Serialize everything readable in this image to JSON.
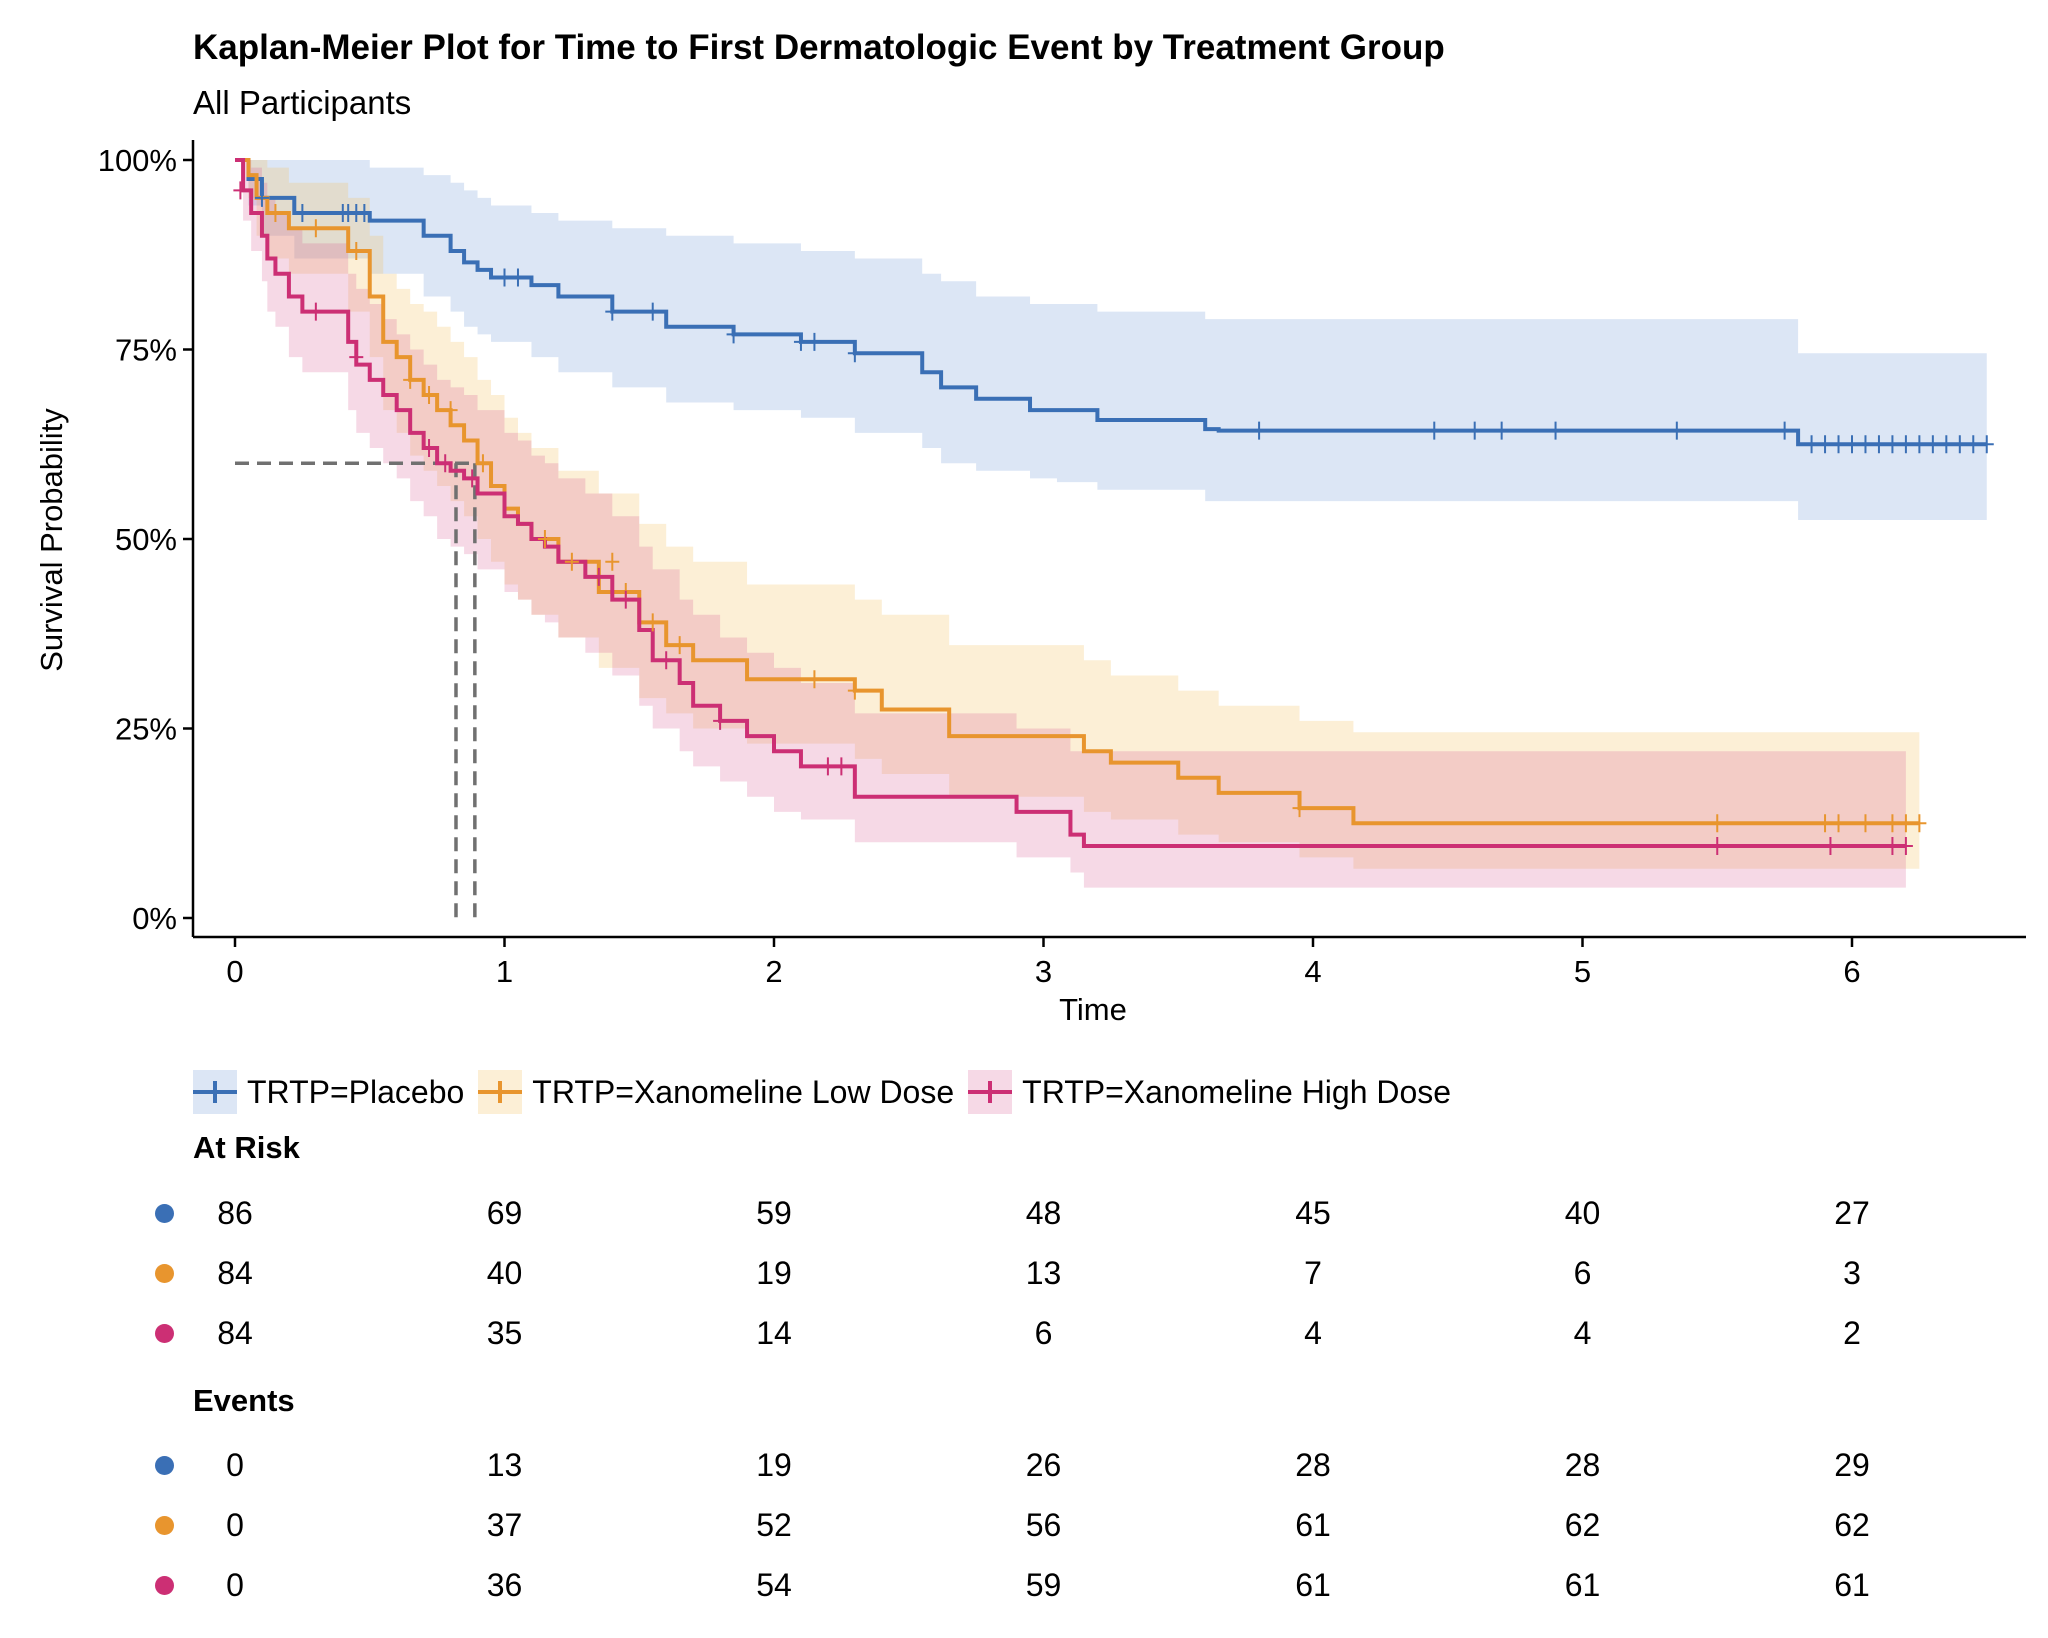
{
  "colors": {
    "placebo": "#3a6fb5",
    "low": "#e8952e",
    "high": "#cc2f74"
  },
  "chart_data": {
    "type": "line",
    "title": "Kaplan-Meier Plot for Time to First Dermatologic Event by Treatment Group",
    "subtitle": "All Participants",
    "xlabel": "Time",
    "ylabel": "Survival Probability",
    "xlim": [
      0,
      6.5
    ],
    "ylim": [
      0,
      1
    ],
    "x_ticks": [
      "0",
      "1",
      "2",
      "3",
      "4",
      "5",
      "6"
    ],
    "y_ticks": [
      "0%",
      "25%",
      "50%",
      "75%",
      "100%"
    ],
    "grid": false,
    "legend_position": "bottom",
    "median_lines": [
      0.82,
      0.89
    ],
    "median_level": 0.6,
    "series": [
      {
        "name": "TRTP=Placebo",
        "color_key": "placebo",
        "x": [
          0,
          0.05,
          0.1,
          0.22,
          0.5,
          0.7,
          0.8,
          0.85,
          0.9,
          0.95,
          1.1,
          1.2,
          1.4,
          1.6,
          1.85,
          2.1,
          2.3,
          2.55,
          2.62,
          2.75,
          2.95,
          3.05,
          3.2,
          3.6,
          3.65,
          5.8,
          6.5
        ],
        "y": [
          1.0,
          0.975,
          0.95,
          0.93,
          0.92,
          0.9,
          0.88,
          0.865,
          0.855,
          0.845,
          0.835,
          0.82,
          0.8,
          0.78,
          0.77,
          0.76,
          0.745,
          0.72,
          0.7,
          0.685,
          0.67,
          0.67,
          0.657,
          0.645,
          0.643,
          0.625,
          0.625
        ],
        "ci_lower": [
          1.0,
          0.94,
          0.9,
          0.87,
          0.85,
          0.82,
          0.8,
          0.78,
          0.77,
          0.76,
          0.74,
          0.72,
          0.7,
          0.68,
          0.67,
          0.66,
          0.64,
          0.62,
          0.6,
          0.59,
          0.58,
          0.575,
          0.565,
          0.55,
          0.55,
          0.525,
          0.525
        ],
        "ci_upper": [
          1.0,
          1.0,
          1.0,
          1.0,
          0.99,
          0.98,
          0.97,
          0.96,
          0.95,
          0.94,
          0.93,
          0.92,
          0.91,
          0.9,
          0.89,
          0.88,
          0.87,
          0.85,
          0.84,
          0.82,
          0.81,
          0.81,
          0.8,
          0.79,
          0.79,
          0.745,
          0.745
        ],
        "censor_x": [
          0.1,
          0.25,
          0.4,
          0.42,
          0.45,
          0.48,
          1.0,
          1.05,
          1.4,
          1.55,
          1.85,
          2.1,
          2.15,
          2.3,
          3.8,
          4.45,
          4.6,
          4.7,
          4.9,
          5.35,
          5.75,
          5.85,
          5.9,
          5.95,
          6.0,
          6.05,
          6.1,
          6.15,
          6.2,
          6.25,
          6.3,
          6.35,
          6.4,
          6.45,
          6.5
        ],
        "censor_y": [
          0.95,
          0.93,
          0.93,
          0.93,
          0.93,
          0.93,
          0.845,
          0.845,
          0.8,
          0.8,
          0.77,
          0.76,
          0.76,
          0.745,
          0.643,
          0.643,
          0.643,
          0.643,
          0.643,
          0.643,
          0.643,
          0.625,
          0.625,
          0.625,
          0.625,
          0.625,
          0.625,
          0.625,
          0.625,
          0.625,
          0.625,
          0.625,
          0.625,
          0.625,
          0.625
        ]
      },
      {
        "name": "TRTP=Xanomeline Low Dose",
        "color_key": "low",
        "x": [
          0,
          0.05,
          0.08,
          0.12,
          0.2,
          0.42,
          0.5,
          0.55,
          0.6,
          0.65,
          0.7,
          0.75,
          0.8,
          0.85,
          0.9,
          0.95,
          1.0,
          1.05,
          1.1,
          1.2,
          1.35,
          1.5,
          1.6,
          1.7,
          1.9,
          2.3,
          2.4,
          2.65,
          3.15,
          3.25,
          3.5,
          3.65,
          3.95,
          4.15,
          6.25
        ],
        "y": [
          1.0,
          0.98,
          0.95,
          0.93,
          0.91,
          0.88,
          0.82,
          0.76,
          0.74,
          0.71,
          0.69,
          0.67,
          0.65,
          0.63,
          0.6,
          0.57,
          0.54,
          0.52,
          0.5,
          0.47,
          0.43,
          0.39,
          0.36,
          0.34,
          0.315,
          0.3,
          0.275,
          0.24,
          0.22,
          0.205,
          0.185,
          0.165,
          0.145,
          0.125,
          0.125
        ],
        "ci_lower": [
          1.0,
          0.95,
          0.9,
          0.87,
          0.85,
          0.8,
          0.74,
          0.67,
          0.64,
          0.61,
          0.59,
          0.57,
          0.55,
          0.53,
          0.5,
          0.47,
          0.44,
          0.42,
          0.4,
          0.37,
          0.33,
          0.29,
          0.27,
          0.25,
          0.23,
          0.21,
          0.19,
          0.16,
          0.14,
          0.13,
          0.11,
          0.1,
          0.08,
          0.065,
          0.065
        ],
        "ci_upper": [
          1.0,
          1.0,
          1.0,
          0.99,
          0.97,
          0.95,
          0.9,
          0.85,
          0.83,
          0.81,
          0.8,
          0.78,
          0.76,
          0.74,
          0.71,
          0.69,
          0.66,
          0.64,
          0.62,
          0.59,
          0.56,
          0.52,
          0.49,
          0.47,
          0.44,
          0.42,
          0.4,
          0.36,
          0.34,
          0.32,
          0.3,
          0.28,
          0.26,
          0.245,
          0.245
        ],
        "censor_x": [
          0.15,
          0.3,
          0.45,
          0.65,
          0.72,
          0.8,
          0.92,
          1.15,
          1.25,
          1.4,
          1.45,
          1.55,
          1.65,
          2.15,
          2.3,
          3.95,
          5.5,
          5.9,
          5.95,
          6.05,
          6.15,
          6.2,
          6.25
        ],
        "censor_y": [
          0.93,
          0.91,
          0.88,
          0.71,
          0.69,
          0.67,
          0.6,
          0.5,
          0.47,
          0.47,
          0.43,
          0.39,
          0.36,
          0.315,
          0.3,
          0.145,
          0.125,
          0.125,
          0.125,
          0.125,
          0.125,
          0.125,
          0.125
        ]
      },
      {
        "name": "TRTP=Xanomeline High Dose",
        "color_key": "high",
        "x": [
          0,
          0.03,
          0.06,
          0.1,
          0.12,
          0.15,
          0.2,
          0.25,
          0.42,
          0.45,
          0.5,
          0.55,
          0.6,
          0.65,
          0.7,
          0.75,
          0.8,
          0.85,
          0.9,
          1.0,
          1.05,
          1.1,
          1.15,
          1.2,
          1.3,
          1.4,
          1.5,
          1.55,
          1.65,
          1.7,
          1.8,
          1.9,
          2.0,
          2.1,
          2.3,
          2.9,
          3.1,
          3.15,
          6.2
        ],
        "y": [
          1.0,
          0.96,
          0.93,
          0.9,
          0.87,
          0.85,
          0.82,
          0.8,
          0.76,
          0.73,
          0.71,
          0.69,
          0.67,
          0.64,
          0.62,
          0.6,
          0.59,
          0.58,
          0.56,
          0.53,
          0.52,
          0.5,
          0.49,
          0.47,
          0.45,
          0.42,
          0.38,
          0.34,
          0.31,
          0.28,
          0.26,
          0.24,
          0.22,
          0.2,
          0.16,
          0.14,
          0.11,
          0.095,
          0.095
        ],
        "ci_lower": [
          1.0,
          0.92,
          0.88,
          0.84,
          0.8,
          0.78,
          0.74,
          0.72,
          0.67,
          0.64,
          0.62,
          0.6,
          0.58,
          0.55,
          0.53,
          0.5,
          0.49,
          0.48,
          0.46,
          0.43,
          0.42,
          0.4,
          0.39,
          0.37,
          0.35,
          0.32,
          0.28,
          0.25,
          0.22,
          0.2,
          0.18,
          0.16,
          0.14,
          0.13,
          0.1,
          0.08,
          0.06,
          0.04,
          0.04
        ],
        "ci_upper": [
          1.0,
          1.0,
          0.99,
          0.97,
          0.95,
          0.93,
          0.91,
          0.89,
          0.85,
          0.83,
          0.81,
          0.79,
          0.77,
          0.75,
          0.73,
          0.71,
          0.7,
          0.69,
          0.67,
          0.64,
          0.63,
          0.61,
          0.6,
          0.58,
          0.56,
          0.53,
          0.49,
          0.46,
          0.42,
          0.4,
          0.37,
          0.35,
          0.33,
          0.31,
          0.27,
          0.25,
          0.22,
          0.22,
          0.22
        ],
        "censor_x": [
          0.02,
          0.3,
          0.45,
          0.72,
          0.78,
          0.88,
          1.35,
          1.45,
          1.6,
          1.8,
          2.2,
          2.25,
          5.5,
          5.92,
          6.15,
          6.2
        ],
        "censor_y": [
          0.96,
          0.8,
          0.74,
          0.62,
          0.6,
          0.58,
          0.45,
          0.42,
          0.34,
          0.26,
          0.2,
          0.2,
          0.095,
          0.095,
          0.095,
          0.095
        ]
      }
    ]
  },
  "risk_table": {
    "at_risk_title": "At Risk",
    "events_title": "Events",
    "times": [
      0,
      1,
      2,
      3,
      4,
      5,
      6
    ],
    "at_risk": [
      {
        "color_key": "placebo",
        "values": [
          "86",
          "69",
          "59",
          "48",
          "45",
          "40",
          "27"
        ]
      },
      {
        "color_key": "low",
        "values": [
          "84",
          "40",
          "19",
          "13",
          "7",
          "6",
          "3"
        ]
      },
      {
        "color_key": "high",
        "values": [
          "84",
          "35",
          "14",
          "6",
          "4",
          "4",
          "2"
        ]
      }
    ],
    "events": [
      {
        "color_key": "placebo",
        "values": [
          "0",
          "13",
          "19",
          "26",
          "28",
          "28",
          "29"
        ]
      },
      {
        "color_key": "low",
        "values": [
          "0",
          "37",
          "52",
          "56",
          "61",
          "62",
          "62"
        ]
      },
      {
        "color_key": "high",
        "values": [
          "0",
          "36",
          "54",
          "59",
          "61",
          "61",
          "61"
        ]
      }
    ]
  }
}
